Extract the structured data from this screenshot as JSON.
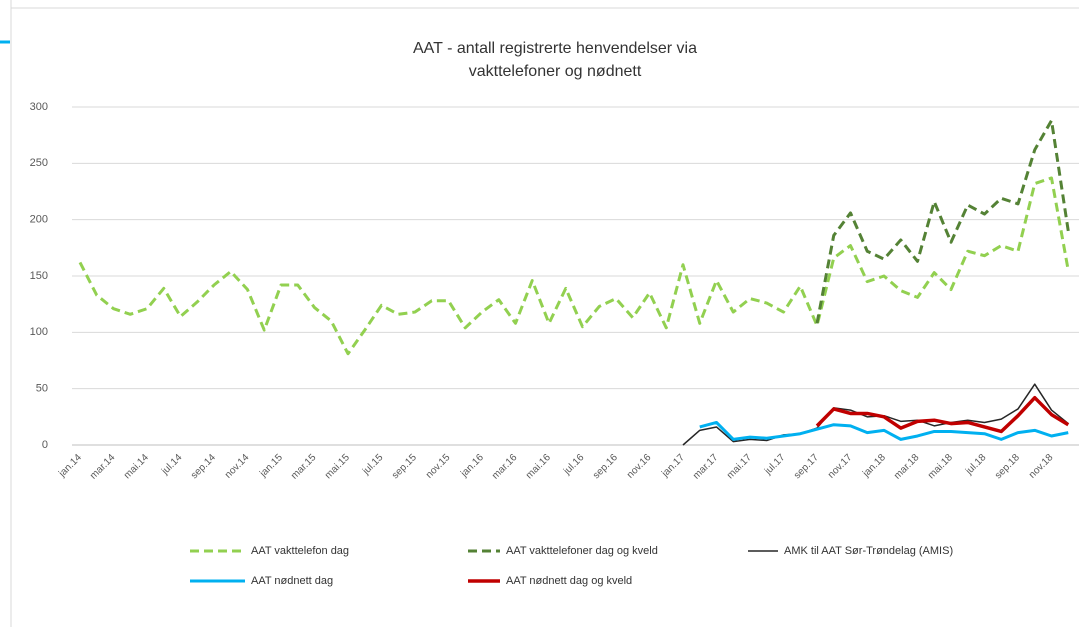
{
  "chart_data": {
    "type": "line",
    "title": [
      "AAT - antall registrerte henvendelser via",
      "vakttelefoner og nødnett"
    ],
    "categories": [
      "jan.14",
      null,
      "mar.14",
      null,
      "mai.14",
      null,
      "jul.14",
      null,
      "sep.14",
      null,
      "nov.14",
      null,
      "jan.15",
      null,
      "mar.15",
      null,
      "mai.15",
      null,
      "jul.15",
      null,
      "sep.15",
      null,
      "nov.15",
      null,
      "jan.16",
      null,
      "mar.16",
      null,
      "mai.16",
      null,
      "jul.16",
      null,
      "sep.16",
      null,
      "nov.16",
      null,
      "jan.17",
      null,
      "mar.17",
      null,
      "mai.17",
      null,
      "jul.17",
      null,
      "sep.17",
      null,
      "nov.17",
      null,
      "jan.18",
      null,
      "mar.18",
      null,
      "mai.18",
      null,
      "jul.18",
      null,
      "sep.18",
      null,
      "nov.18",
      null
    ],
    "series": [
      {
        "name": "AAT vakttelefon dag",
        "color": "#92d050",
        "dashed": true,
        "width": 3,
        "values": [
          162,
          133,
          121,
          116,
          121,
          139,
          114,
          127,
          142,
          154,
          138,
          102,
          142,
          142,
          122,
          110,
          81,
          102,
          124,
          116,
          118,
          128,
          128,
          104,
          118,
          129,
          108,
          146,
          108,
          139,
          105,
          123,
          130,
          113,
          135,
          104,
          160,
          108,
          146,
          118,
          130,
          126,
          118,
          141,
          106,
          166,
          177,
          145,
          150,
          137,
          131,
          153,
          138,
          172,
          168,
          177,
          172,
          232,
          237,
          155
        ]
      },
      {
        "name": "AAT vakttelefoner dag og kveld",
        "color": "#548235",
        "dashed": true,
        "width": 3,
        "values": [
          null,
          null,
          null,
          null,
          null,
          null,
          null,
          null,
          null,
          null,
          null,
          null,
          null,
          null,
          null,
          null,
          null,
          null,
          null,
          null,
          null,
          null,
          null,
          null,
          null,
          null,
          null,
          null,
          null,
          null,
          null,
          null,
          null,
          null,
          null,
          null,
          null,
          null,
          null,
          null,
          null,
          null,
          null,
          null,
          108,
          186,
          206,
          172,
          165,
          182,
          163,
          216,
          180,
          213,
          205,
          219,
          214,
          262,
          288,
          190
        ]
      },
      {
        "name": "AMK til  AAT Sør-Trøndelag (AMIS)",
        "color": "#262626",
        "dashed": false,
        "width": 1.5,
        "values": [
          null,
          null,
          null,
          null,
          null,
          null,
          null,
          null,
          null,
          null,
          null,
          null,
          null,
          null,
          null,
          null,
          null,
          null,
          null,
          null,
          null,
          null,
          null,
          null,
          null,
          null,
          null,
          null,
          null,
          null,
          null,
          null,
          null,
          null,
          null,
          null,
          0,
          13,
          16,
          3,
          5,
          4,
          9,
          10,
          15,
          33,
          31,
          25,
          26,
          21,
          22,
          17,
          20,
          22,
          20,
          23,
          32,
          54,
          31,
          19
        ]
      },
      {
        "name": "AAT  nødnett dag",
        "color": "#00b0f0",
        "dashed": false,
        "width": 3,
        "values": [
          null,
          null,
          null,
          null,
          null,
          null,
          null,
          null,
          null,
          null,
          null,
          null,
          null,
          null,
          null,
          null,
          null,
          null,
          null,
          null,
          null,
          null,
          null,
          null,
          null,
          null,
          null,
          null,
          null,
          null,
          null,
          null,
          null,
          null,
          null,
          null,
          null,
          16,
          20,
          5,
          7,
          6,
          8,
          10,
          14,
          18,
          17,
          11,
          13,
          5,
          8,
          12,
          12,
          11,
          10,
          5,
          11,
          13,
          8,
          11
        ]
      },
      {
        "name": "AAT  nødnett dag og kveld",
        "color": "#c00000",
        "dashed": false,
        "width": 3.5,
        "values": [
          null,
          null,
          null,
          null,
          null,
          null,
          null,
          null,
          null,
          null,
          null,
          null,
          null,
          null,
          null,
          null,
          null,
          null,
          null,
          null,
          null,
          null,
          null,
          null,
          null,
          null,
          null,
          null,
          null,
          null,
          null,
          null,
          null,
          null,
          null,
          null,
          null,
          null,
          null,
          null,
          null,
          null,
          null,
          null,
          17,
          32,
          28,
          28,
          25,
          15,
          21,
          22,
          19,
          20,
          16,
          12,
          26,
          42,
          27,
          18
        ]
      }
    ],
    "ylim": [
      0,
      300
    ],
    "yticks": [
      0,
      50,
      100,
      150,
      200,
      250,
      300
    ],
    "grid": true
  }
}
